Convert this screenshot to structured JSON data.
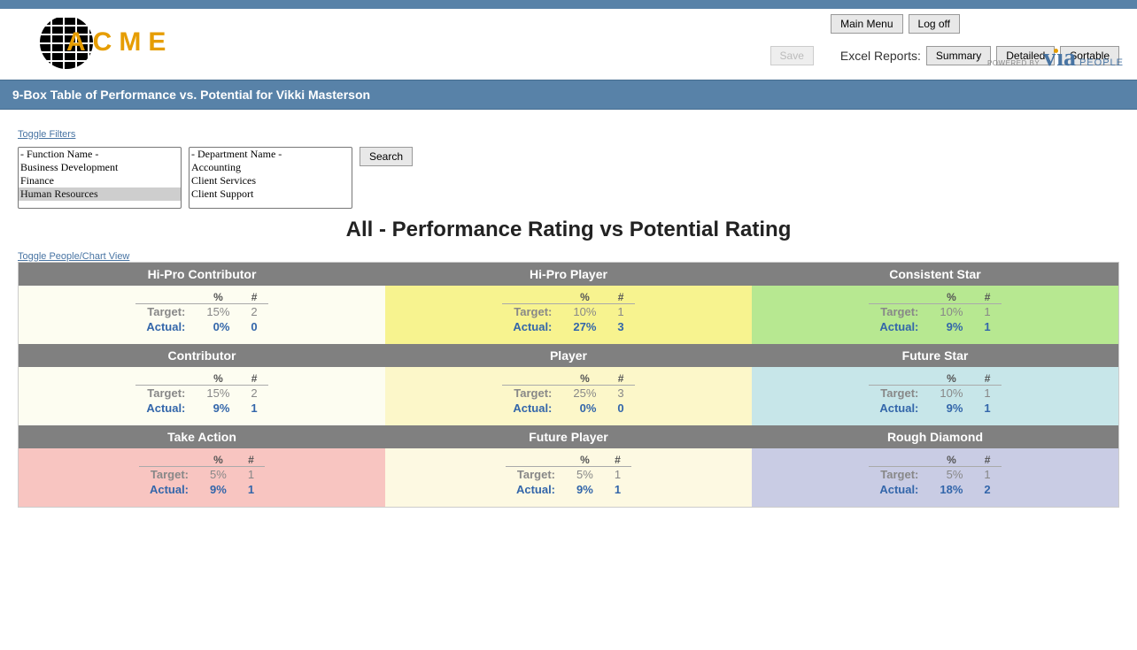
{
  "top_buttons": {
    "main_menu": "Main Menu",
    "log_off": "Log off"
  },
  "logo_text": "ACME",
  "save_label": "Save",
  "reports": {
    "label": "Excel Reports:",
    "summary": "Summary",
    "detailed": "Detailed",
    "sortable": "Sortable"
  },
  "via": {
    "powered": "POWERED BY",
    "brand": "via",
    "people": "PEOPLE"
  },
  "title_bar": "9-Box Table of Performance vs. Potential for Vikki Masterson",
  "links": {
    "toggle_filters": "Toggle Filters",
    "toggle_view": "Toggle People/Chart View"
  },
  "search_label": "Search",
  "filters": {
    "function": {
      "placeholder": "- Function Name -",
      "options": [
        "Business Development",
        "Finance",
        "Human Resources"
      ],
      "selected": "Human Resources"
    },
    "department": {
      "placeholder": "- Department Name -",
      "options": [
        "Accounting",
        "Client Services",
        "Client Support"
      ]
    }
  },
  "chart_title": "All - Performance Rating vs Potential Rating",
  "labels": {
    "percent": "%",
    "count": "#",
    "target": "Target:",
    "actual": "Actual:"
  },
  "grid": {
    "colors": {
      "header_bg": "#808080",
      "header_fg": "#ffffff",
      "target_color": "#888888",
      "actual_color": "#3366aa"
    },
    "cells": [
      [
        {
          "name": "Hi-Pro Contributor",
          "bg": "cream",
          "target_pct": "15%",
          "target_n": "2",
          "actual_pct": "0%",
          "actual_n": "0"
        },
        {
          "name": "Hi-Pro Player",
          "bg": "yellow",
          "target_pct": "10%",
          "target_n": "1",
          "actual_pct": "27%",
          "actual_n": "3"
        },
        {
          "name": "Consistent Star",
          "bg": "green",
          "target_pct": "10%",
          "target_n": "1",
          "actual_pct": "9%",
          "actual_n": "1"
        }
      ],
      [
        {
          "name": "Contributor",
          "bg": "cream",
          "target_pct": "15%",
          "target_n": "2",
          "actual_pct": "9%",
          "actual_n": "1"
        },
        {
          "name": "Player",
          "bg": "ltyellow",
          "target_pct": "25%",
          "target_n": "3",
          "actual_pct": "0%",
          "actual_n": "0"
        },
        {
          "name": "Future Star",
          "bg": "paleblue",
          "target_pct": "10%",
          "target_n": "1",
          "actual_pct": "9%",
          "actual_n": "1"
        }
      ],
      [
        {
          "name": "Take Action",
          "bg": "pink",
          "target_pct": "5%",
          "target_n": "1",
          "actual_pct": "9%",
          "actual_n": "1"
        },
        {
          "name": "Future Player",
          "bg": "ltcream",
          "target_pct": "5%",
          "target_n": "1",
          "actual_pct": "9%",
          "actual_n": "1"
        },
        {
          "name": "Rough Diamond",
          "bg": "lav",
          "target_pct": "5%",
          "target_n": "1",
          "actual_pct": "18%",
          "actual_n": "2"
        }
      ]
    ]
  }
}
